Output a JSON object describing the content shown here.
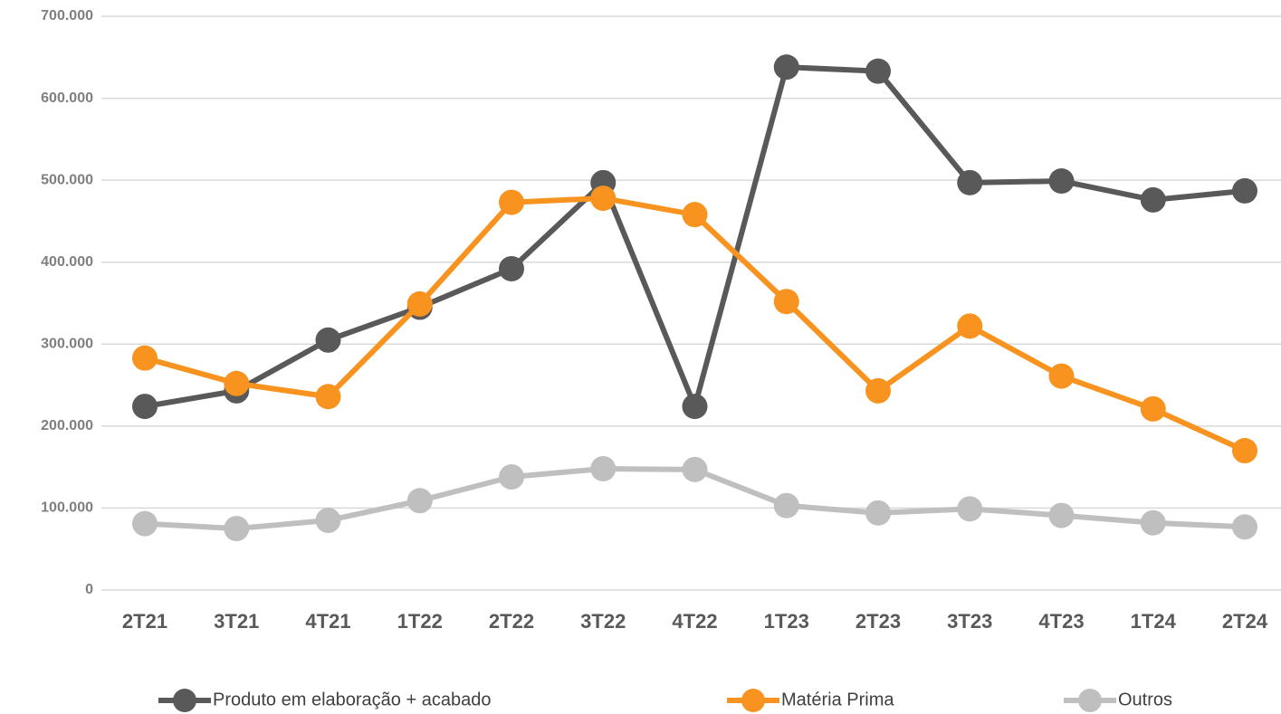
{
  "chart_data": {
    "type": "line",
    "categories": [
      "2T21",
      "3T21",
      "4T21",
      "1T22",
      "2T22",
      "3T22",
      "4T22",
      "1T23",
      "2T23",
      "3T23",
      "4T23",
      "1T24",
      "2T24"
    ],
    "series": [
      {
        "name": "Produto em elaboração + acabado",
        "color": "#595959",
        "values": [
          224000,
          243000,
          305000,
          345000,
          392000,
          497000,
          224000,
          638000,
          633000,
          497000,
          499000,
          476000,
          487000
        ]
      },
      {
        "name": "Matéria Prima",
        "color": "#f7931e",
        "values": [
          283000,
          252000,
          236000,
          349000,
          473000,
          478000,
          458000,
          352000,
          243000,
          322000,
          261000,
          221000,
          170000
        ]
      },
      {
        "name": "Outros",
        "color": "#bfbfbf",
        "values": [
          81000,
          75000,
          85000,
          109000,
          138000,
          148000,
          147000,
          103000,
          94000,
          99000,
          91000,
          82000,
          77000
        ]
      }
    ],
    "ylim": [
      0,
      700000
    ],
    "yticks": [
      0,
      {
        "value": 100000,
        "label": "100.000"
      },
      {
        "value": 200000,
        "label": "200.000"
      },
      {
        "value": 300000,
        "label": "300.000"
      },
      {
        "value": 400000,
        "label": "400.000"
      },
      {
        "value": 500000,
        "label": "500.000"
      },
      {
        "value": 600000,
        "label": "600.000"
      },
      {
        "value": 700000,
        "label": "700.000"
      }
    ],
    "grid": true,
    "legend": "bottom"
  }
}
